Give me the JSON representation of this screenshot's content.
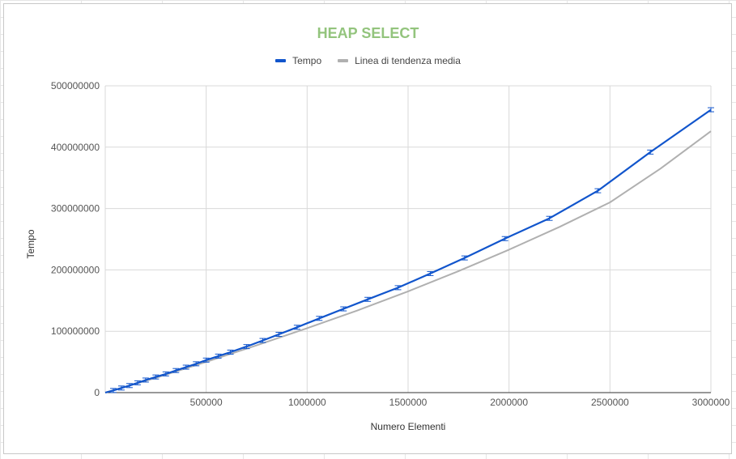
{
  "chart_data": {
    "type": "line",
    "title": "HEAP SELECT",
    "xlabel": "Numero Elementi",
    "ylabel": "Tempo",
    "xlim": [
      0,
      3000000
    ],
    "ylim": [
      0,
      500000000
    ],
    "x_ticks": [
      "500000",
      "1000000",
      "1500000",
      "2000000",
      "2500000",
      "3000000"
    ],
    "y_ticks": [
      "0",
      "100000000",
      "200000000",
      "300000000",
      "400000000",
      "500000000"
    ],
    "grid": true,
    "legend_position": "top",
    "series": [
      {
        "name": "Tempo",
        "color": "#1155cc",
        "error_bars": true,
        "x": [
          0,
          40000,
          80000,
          120000,
          160000,
          200000,
          250000,
          300000,
          350000,
          400000,
          450000,
          500000,
          560000,
          620000,
          700000,
          780000,
          860000,
          950000,
          1060000,
          1180000,
          1300000,
          1450000,
          1610000,
          1780000,
          1980000,
          2200000,
          2440000,
          2700000,
          3000000
        ],
        "y": [
          0,
          3500000,
          7500000,
          11500000,
          16000000,
          20500000,
          25500000,
          30500000,
          36000000,
          41500000,
          47000000,
          53000000,
          59500000,
          66000000,
          75000000,
          85000000,
          95000000,
          106500000,
          121000000,
          136500000,
          152000000,
          171000000,
          194000000,
          219500000,
          251000000,
          284000000,
          329000000,
          392000000,
          461000000
        ]
      },
      {
        "name": "Linea di tendenza media",
        "color": "#b0b0b0",
        "x": [
          0,
          250000,
          500000,
          750000,
          1000000,
          1250000,
          1500000,
          1750000,
          2000000,
          2250000,
          2500000,
          2750000,
          3000000
        ],
        "y": [
          0,
          24000000,
          50000000,
          77000000,
          105000000,
          134000000,
          165000000,
          198000000,
          233000000,
          270000000,
          310000000,
          365000000,
          426000000
        ]
      }
    ]
  },
  "colors": {
    "title": "#93c47d",
    "grid": "#d9d9d9",
    "axis": "#333333"
  }
}
